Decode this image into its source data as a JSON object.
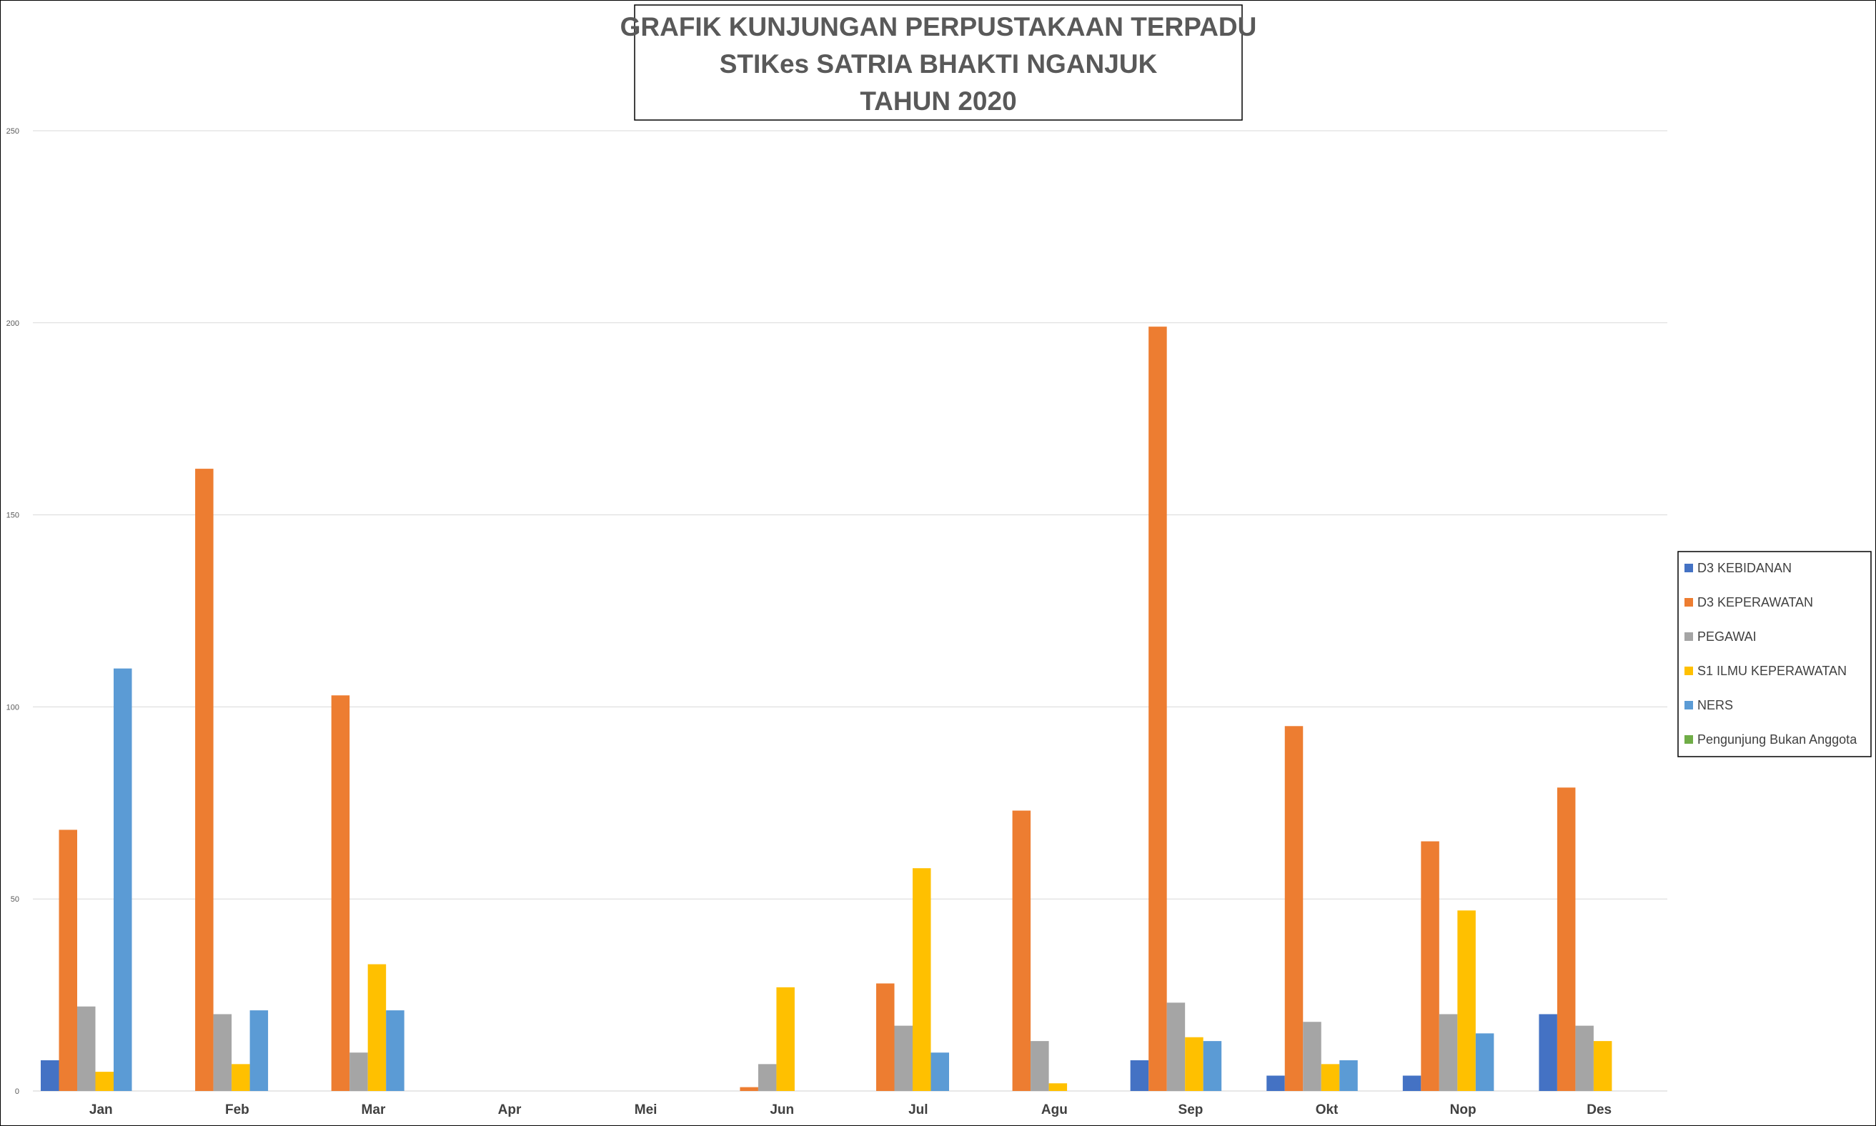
{
  "chart_data": {
    "type": "bar",
    "title_lines": [
      "GRAFIK KUNJUNGAN PERPUSTAKAAN TERPADU",
      "STIKes SATRIA BHAKTI NGANJUK",
      "TAHUN 2020"
    ],
    "categories": [
      "Jan",
      "Feb",
      "Mar",
      "Apr",
      "Mei",
      "Jun",
      "Jul",
      "Agu",
      "Sep",
      "Okt",
      "Nop",
      "Des"
    ],
    "ylim": [
      0,
      250
    ],
    "yticks": [
      "0",
      "50",
      "100",
      "150",
      "200",
      "250"
    ],
    "grid": true,
    "legend_position": "right",
    "series": [
      {
        "name": "D3 KEBIDANAN",
        "color": "#4472C4",
        "values": [
          8,
          0,
          0,
          0,
          0,
          0,
          0,
          0,
          8,
          4,
          4,
          20
        ]
      },
      {
        "name": "D3 KEPERAWATAN",
        "color": "#ED7D31",
        "values": [
          68,
          162,
          103,
          0,
          0,
          1,
          28,
          73,
          199,
          95,
          65,
          79
        ]
      },
      {
        "name": "PEGAWAI",
        "color": "#A5A5A5",
        "values": [
          22,
          20,
          10,
          0,
          0,
          7,
          17,
          13,
          23,
          18,
          20,
          17
        ]
      },
      {
        "name": "S1 ILMU KEPERAWATAN",
        "color": "#FFC000",
        "values": [
          5,
          7,
          33,
          0,
          0,
          27,
          58,
          2,
          14,
          7,
          47,
          13
        ]
      },
      {
        "name": "NERS",
        "color": "#5B9BD5",
        "values": [
          110,
          21,
          21,
          0,
          0,
          0,
          10,
          0,
          13,
          8,
          15,
          0
        ]
      },
      {
        "name": "Pengunjung Bukan Anggota",
        "color": "#70AD47",
        "values": [
          0,
          0,
          0,
          0,
          0,
          0,
          0,
          0,
          0,
          0,
          0,
          0
        ]
      }
    ]
  }
}
